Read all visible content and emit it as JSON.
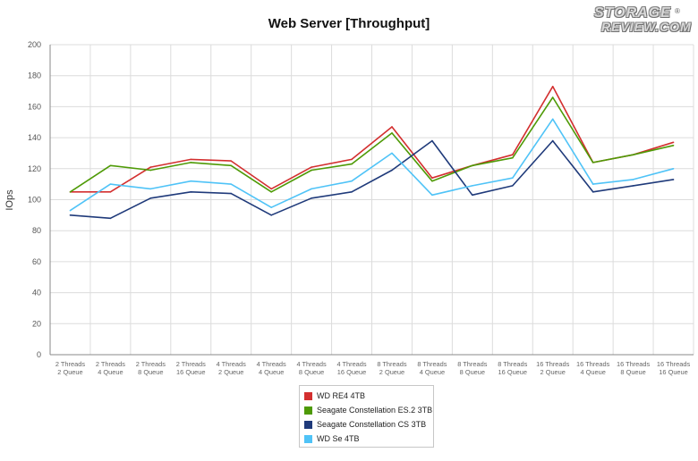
{
  "chart_data": {
    "type": "line",
    "title": "Web Server [Throughput]",
    "ylabel": "IOps",
    "xlabel": "",
    "ylim": [
      0,
      200
    ],
    "yticks": [
      0,
      20,
      40,
      60,
      80,
      100,
      120,
      140,
      160,
      180,
      200
    ],
    "grid": true,
    "legend_position": "bottom",
    "categories": [
      [
        "2 Threads",
        "2 Queue"
      ],
      [
        "2 Threads",
        "4 Queue"
      ],
      [
        "2 Threads",
        "8 Queue"
      ],
      [
        "2 Threads",
        "16 Queue"
      ],
      [
        "4 Threads",
        "2 Queue"
      ],
      [
        "4 Threads",
        "4 Queue"
      ],
      [
        "4 Threads",
        "8 Queue"
      ],
      [
        "4 Threads",
        "16 Queue"
      ],
      [
        "8 Threads",
        "2 Queue"
      ],
      [
        "8 Threads",
        "4 Queue"
      ],
      [
        "8 Threads",
        "8 Queue"
      ],
      [
        "8 Threads",
        "16 Queue"
      ],
      [
        "16 Threads",
        "2 Queue"
      ],
      [
        "16 Threads",
        "4 Queue"
      ],
      [
        "16 Threads",
        "8 Queue"
      ],
      [
        "16 Threads",
        "16 Queue"
      ]
    ],
    "series": [
      {
        "name": "WD RE4 4TB",
        "color": "#d32f2f",
        "values": [
          105,
          105,
          121,
          126,
          125,
          107,
          121,
          126,
          147,
          114,
          122,
          129,
          173,
          124,
          129,
          137
        ]
      },
      {
        "name": "Seagate Constellation ES.2 3TB",
        "color": "#4e9a06",
        "values": [
          105,
          122,
          119,
          124,
          122,
          105,
          119,
          123,
          143,
          112,
          122,
          127,
          166,
          124,
          129,
          135
        ]
      },
      {
        "name": "Seagate Constellation CS 3TB",
        "color": "#1f3a7a",
        "values": [
          90,
          88,
          101,
          105,
          104,
          90,
          101,
          105,
          119,
          138,
          103,
          109,
          138,
          105,
          109,
          113
        ]
      },
      {
        "name": "WD Se 4TB",
        "color": "#4fc3f7",
        "values": [
          93,
          110,
          107,
          112,
          110,
          95,
          107,
          112,
          130,
          103,
          109,
          114,
          152,
          110,
          113,
          120
        ]
      }
    ]
  },
  "logo": {
    "line1": "STORAGE",
    "line2": "REVIEW.COM",
    "mark": "®"
  }
}
